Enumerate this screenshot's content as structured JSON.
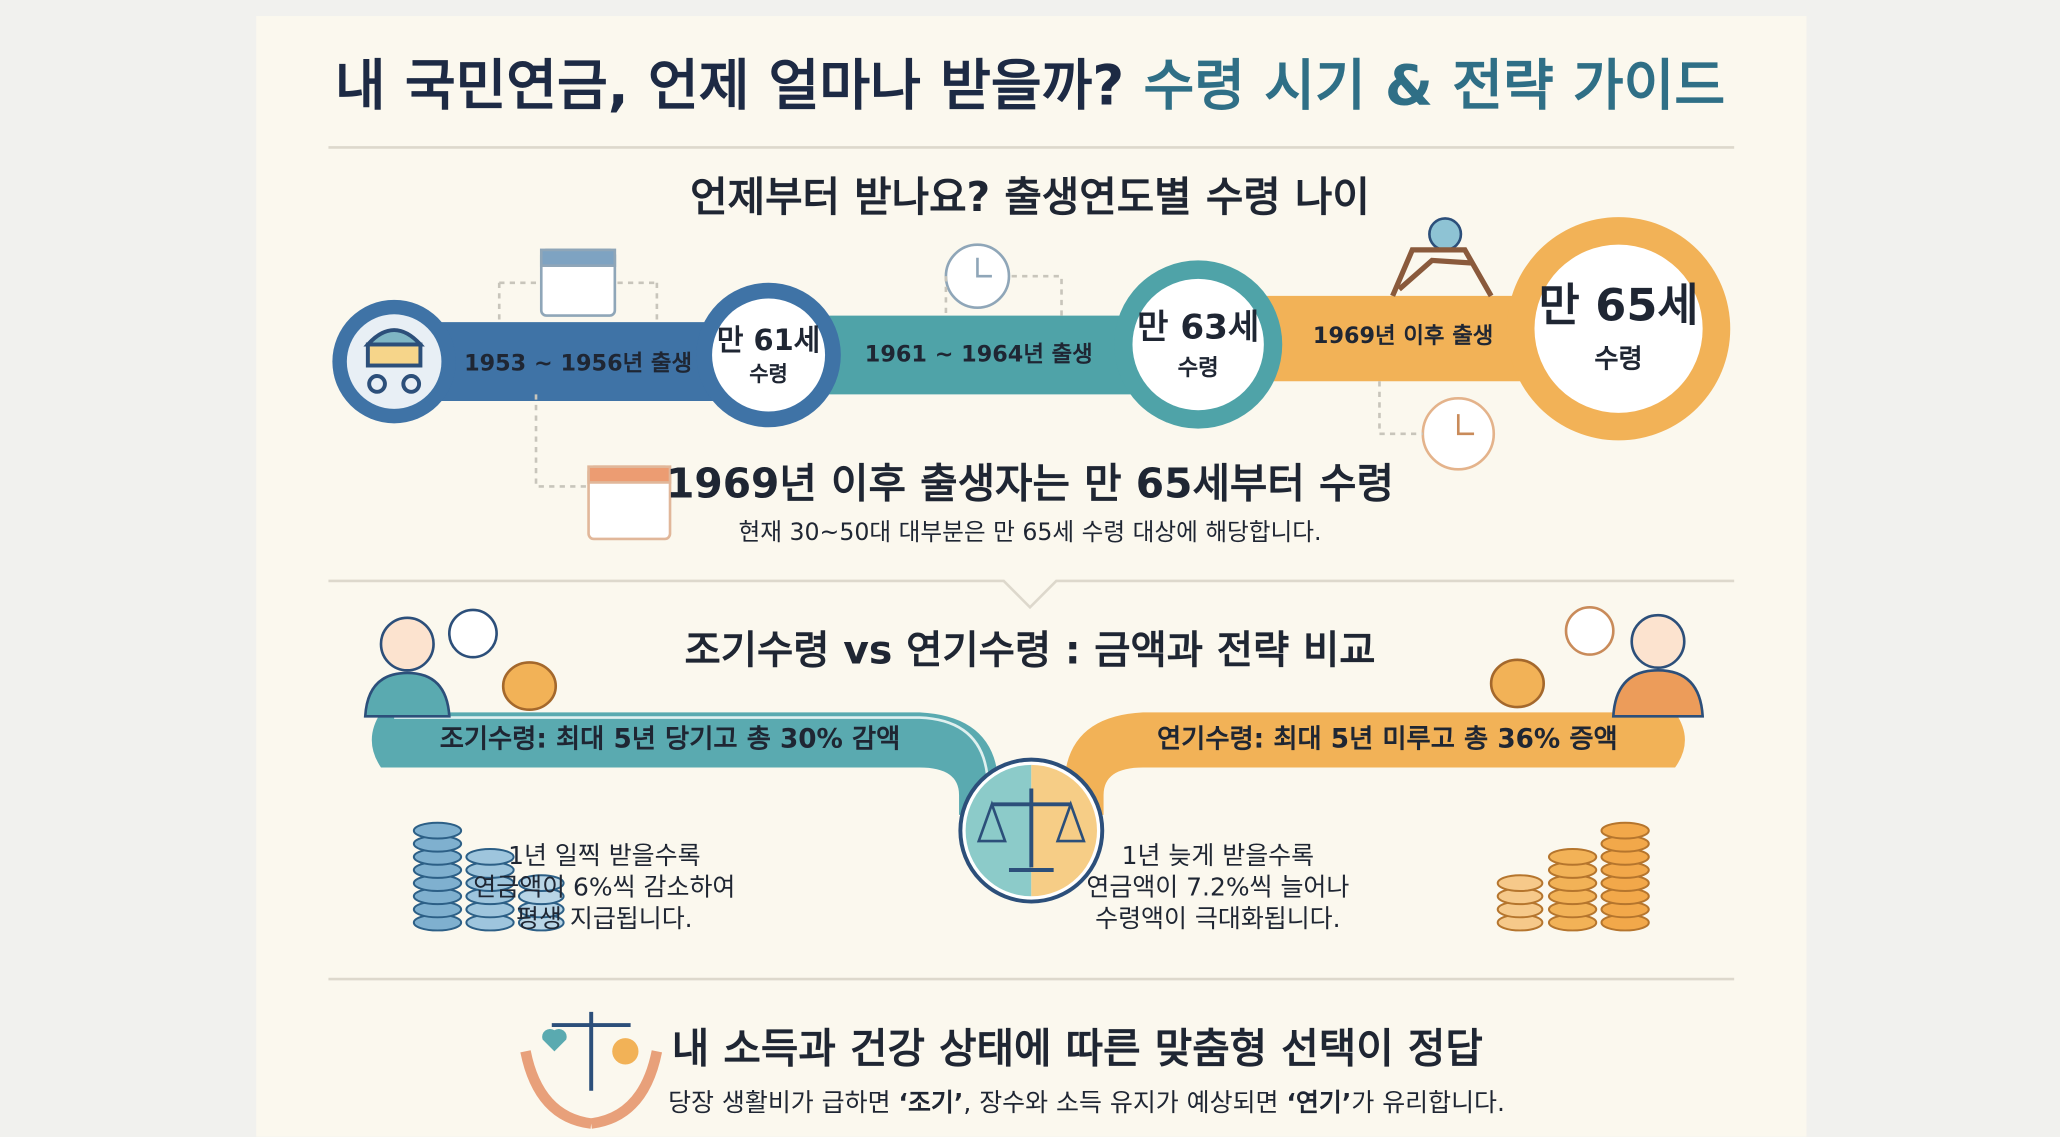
{
  "header": {
    "title_main": "내 국민연금, 언제 얼마나 받을까?",
    "title_accent": "수령 시기 & 전략 가이드"
  },
  "timeline": {
    "title": "언제부터 받나요? 출생연도별 수령 나이",
    "stages": [
      {
        "birth": "1953 ~ 1956년 출생",
        "age": "만 61세",
        "label": "수령"
      },
      {
        "birth": "1961 ~ 1964년 출생",
        "age": "만 63세",
        "label": "수령"
      },
      {
        "birth": "1969년 이후 출생",
        "age": "만 65세",
        "label": "수령"
      }
    ],
    "highlight": "1969년 이후 출생자는 만 65세부터 수령",
    "note": "현재 30~50대 대부분은 만 65세 수령 대상에 해당합니다."
  },
  "comparison": {
    "title": "조기수령 vs 연기수령 : 금액과 전략 비교",
    "early": {
      "label": "조기수령: 최대 5년 당기고 총 30% 감액",
      "lines": [
        "1년 일찍 받을수록",
        "연금액이 6%씩 감소하여",
        "평생 지급됩니다."
      ]
    },
    "late": {
      "label": "연기수령: 최대 5년 미루고 총 36% 증액",
      "lines": [
        "1년 늦게 받을수록",
        "연금액이 7.2%씩 늘어나",
        "수령액이 극대화됩니다."
      ]
    }
  },
  "conclusion": {
    "title": "내 소득과 건강 상태에 따른 맞춤형 선택이 정답",
    "note": [
      {
        "text": "당장 생활비가 급하면 "
      },
      {
        "text": "‘조기’",
        "bold": true
      },
      {
        "text": ", 장수와 소득 유지가 예상되면 "
      },
      {
        "text": "‘연기’",
        "bold": true
      },
      {
        "text": "가 유리합니다."
      }
    ]
  }
}
